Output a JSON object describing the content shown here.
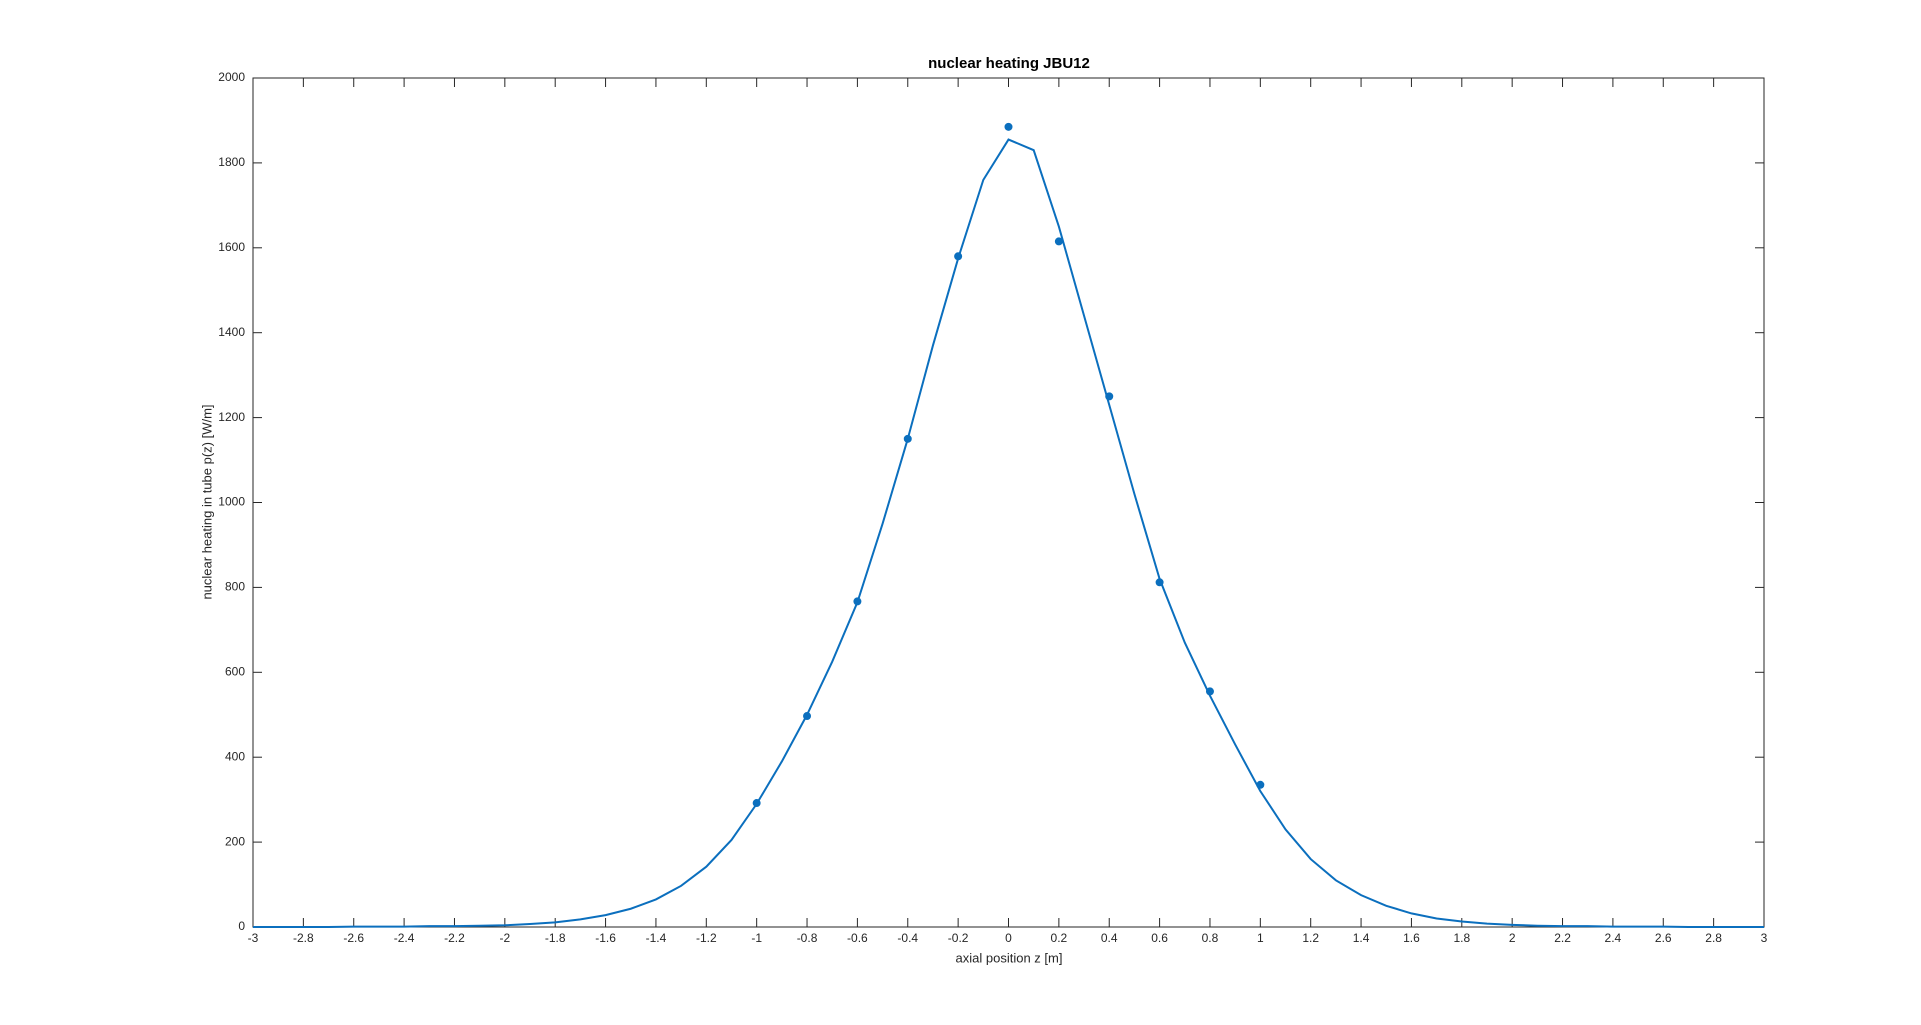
{
  "chart_data": {
    "type": "line",
    "title": "nuclear heating JBU12",
    "xlabel": "axial position z [m]",
    "ylabel": "nuclear heating in tube p(z) [W/m]",
    "xlim": [
      -3,
      3
    ],
    "ylim": [
      0,
      2000
    ],
    "xticks": [
      -3,
      -2.8,
      -2.6,
      -2.4,
      -2.2,
      -2,
      -1.8,
      -1.6,
      -1.4,
      -1.2,
      -1,
      -0.8,
      -0.6,
      -0.4,
      -0.2,
      0,
      0.2,
      0.4,
      0.6,
      0.8,
      1,
      1.2,
      1.4,
      1.6,
      1.8,
      2,
      2.2,
      2.4,
      2.6,
      2.8,
      3
    ],
    "yticks": [
      0,
      200,
      400,
      600,
      800,
      1000,
      1200,
      1400,
      1600,
      1800,
      2000
    ],
    "grid": false,
    "series": [
      {
        "style": "line",
        "color": "#0b6fbe",
        "x": [
          -3,
          -2.9,
          -2.8,
          -2.7,
          -2.6,
          -2.5,
          -2.4,
          -2.3,
          -2.2,
          -2.1,
          -2,
          -1.9,
          -1.8,
          -1.7,
          -1.6,
          -1.5,
          -1.4,
          -1.3,
          -1.2,
          -1.1,
          -1,
          -0.9,
          -0.8,
          -0.7,
          -0.6,
          -0.5,
          -0.4,
          -0.3,
          -0.2,
          -0.1,
          0,
          0.1,
          0.2,
          0.3,
          0.4,
          0.5,
          0.6,
          0.7,
          0.8,
          0.9,
          1,
          1.1,
          1.2,
          1.3,
          1.4,
          1.5,
          1.6,
          1.7,
          1.8,
          1.9,
          2,
          2.1,
          2.2,
          2.3,
          2.4,
          2.5,
          2.6,
          2.7,
          2.8,
          2.9,
          3
        ],
        "values": [
          0,
          0,
          0,
          0,
          1,
          1,
          1,
          2,
          2,
          3,
          4,
          7,
          11,
          18,
          28,
          43,
          65,
          97,
          142,
          205,
          290,
          390,
          500,
          625,
          765,
          950,
          1150,
          1370,
          1575,
          1760,
          1855,
          1830,
          1650,
          1440,
          1230,
          1020,
          820,
          670,
          545,
          430,
          320,
          230,
          160,
          110,
          75,
          50,
          32,
          20,
          13,
          8,
          5,
          3,
          2,
          2,
          1,
          1,
          1,
          0,
          0,
          0,
          0
        ]
      },
      {
        "style": "markers",
        "color": "#0b6fbe",
        "x": [
          -1,
          -0.8,
          -0.6,
          -0.4,
          -0.2,
          0,
          0.2,
          0.4,
          0.6,
          0.8,
          1
        ],
        "values": [
          292,
          497,
          767,
          1150,
          1580,
          1885,
          1615,
          1250,
          812,
          555,
          335
        ]
      }
    ]
  }
}
